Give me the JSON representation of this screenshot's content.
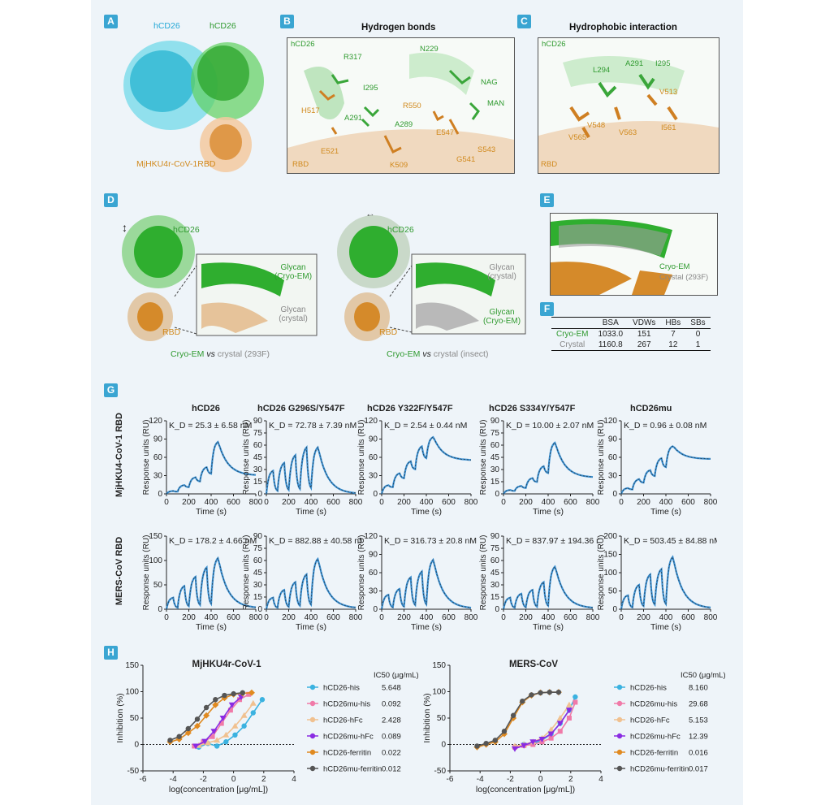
{
  "panels": {
    "A": {
      "tag": "A",
      "label_hcd26_left": "hCD26",
      "label_hcd26_right": "hCD26",
      "label_rbd": "MjHKU4r-CoV-1RBD"
    },
    "B": {
      "tag": "B",
      "title": "Hydrogen bonds",
      "hcd26": "hCD26",
      "rbd": "RBD",
      "residues": [
        "R317",
        "N229",
        "I295",
        "NAG",
        "H517",
        "R550",
        "A291",
        "MAN",
        "A289",
        "E547",
        "S543",
        "E521",
        "K509",
        "G541"
      ]
    },
    "C": {
      "tag": "C",
      "title": "Hydrophobic interaction",
      "hcd26": "hCD26",
      "rbd": "RBD",
      "residues": [
        "L294",
        "A291",
        "I295",
        "V513",
        "V548",
        "V563",
        "I561",
        "V565"
      ]
    },
    "D": {
      "tag": "D",
      "left": {
        "hcd26": "hCD26",
        "rbd": "RBD",
        "glycan_top": "Glycan (Cryo-EM)",
        "glycan_bottom": "Glycan (crystal)",
        "caption_em": "Cryo-EM",
        "caption_vs": "vs",
        "caption_rest": "crystal (293F)"
      },
      "right": {
        "hcd26": "hCD26",
        "rbd": "RBD",
        "glycan_top": "Glycan (crystal)",
        "glycan_bottom": "Glycan (Cryo-EM)",
        "caption_em": "Cryo-EM",
        "caption_vs": "vs",
        "caption_rest": "crystal (insect)"
      }
    },
    "E": {
      "tag": "E",
      "label_em": "Cryo-EM",
      "label_crystal": "Crystal (293F)"
    },
    "F": {
      "tag": "F",
      "headers": [
        "",
        "BSA",
        "VDWs",
        "HBs",
        "SBs"
      ],
      "rows": [
        [
          "Cryo-EM",
          "1033.0",
          "151",
          "7",
          "0"
        ],
        [
          "Crystal",
          "1160.8",
          "267",
          "12",
          "1"
        ]
      ]
    },
    "G": {
      "tag": "G",
      "row_labels": [
        "MjHKU4-CoV-1 RBD",
        "MERS-CoV RBD"
      ],
      "col_titles": [
        "hCD26",
        "hCD26 G296S/Y547F",
        "hCD26 Y322F/Y547F",
        "hCD26 S334Y/Y547F",
        "hCD26mu"
      ],
      "ylabel": "Response units (RU)",
      "xlabel": "Time (s)"
    },
    "H": {
      "tag": "H",
      "ylabel": "Inhibition (%)",
      "xlabel": "log(concentration [μg/mL])"
    }
  },
  "colors": {
    "accent": "#3aa5d2",
    "green": "#2f9a2f",
    "orange": "#d18a1e",
    "trace": "#3a8fd1"
  },
  "chart_data": [
    {
      "type": "line",
      "title": "hCD26",
      "kd": "K_D = 25.3 ± 6.58 nM",
      "ylim": [
        0,
        120
      ],
      "yticks": [
        0,
        30,
        60,
        90,
        120
      ],
      "xlim": [
        0,
        800
      ],
      "xticks": [
        0,
        200,
        400,
        600,
        800
      ],
      "peaks": [
        5,
        15,
        28,
        45,
        88
      ],
      "dissoc_end": 30,
      "xlabel": "Time (s)",
      "ylabel": "Response units (RU)"
    },
    {
      "type": "line",
      "title": "hCD26 G296S/Y547F",
      "kd": "K_D = 72.78 ± 7.39 nM",
      "ylim": [
        0,
        90
      ],
      "yticks": [
        0,
        15,
        30,
        45,
        60,
        75,
        90
      ],
      "xlim": [
        0,
        800
      ],
      "xticks": [
        0,
        200,
        400,
        600,
        800
      ],
      "peaks": [
        30,
        40,
        50,
        60,
        60
      ],
      "dissoc_end": 0,
      "xlabel": "Time (s)",
      "ylabel": "Response units (RU)"
    },
    {
      "type": "line",
      "title": "hCD26 Y322F/Y547F",
      "kd": "K_D = 2.54 ± 0.44 nM",
      "ylim": [
        0,
        120
      ],
      "yticks": [
        0,
        30,
        60,
        90,
        120
      ],
      "xlim": [
        0,
        800
      ],
      "xticks": [
        0,
        200,
        400,
        600,
        800
      ],
      "peaks": [
        15,
        35,
        55,
        80,
        95
      ],
      "dissoc_end": 55,
      "xlabel": "Time (s)",
      "ylabel": "Response units (RU)"
    },
    {
      "type": "line",
      "title": "hCD26 S334Y/Y547F",
      "kd": "K_D = 10.00 ± 2.07 nM",
      "ylim": [
        0,
        90
      ],
      "yticks": [
        0,
        15,
        30,
        45,
        60,
        75,
        90
      ],
      "xlim": [
        0,
        800
      ],
      "xticks": [
        0,
        200,
        400,
        600,
        800
      ],
      "peaks": [
        5,
        10,
        20,
        35,
        65
      ],
      "dissoc_end": 20,
      "xlabel": "Time (s)",
      "ylabel": "Response units (RU)"
    },
    {
      "type": "line",
      "title": "hCD26mu",
      "kd": "K_D = 0.96 ± 0.08 nM",
      "ylim": [
        0,
        120
      ],
      "yticks": [
        0,
        30,
        60,
        90,
        120
      ],
      "xlim": [
        0,
        800
      ],
      "xticks": [
        0,
        200,
        400,
        600,
        800
      ],
      "peaks": [
        10,
        25,
        40,
        60,
        80
      ],
      "dissoc_end": 57,
      "xlabel": "Time (s)",
      "ylabel": "Response units (RU)"
    },
    {
      "type": "line",
      "kd": "K_D = 178.2 ± 4.66 nM",
      "ylim": [
        0,
        150
      ],
      "yticks": [
        0,
        50,
        100,
        150
      ],
      "xlim": [
        0,
        800
      ],
      "xticks": [
        0,
        200,
        400,
        600,
        800
      ],
      "peaks": [
        25,
        50,
        70,
        90,
        110
      ],
      "dissoc_end": 2,
      "xlabel": "Time (s)",
      "ylabel": "Response units (RU)"
    },
    {
      "type": "line",
      "kd": "K_D = 882.88 ± 40.58 nM",
      "ylim": [
        0,
        90
      ],
      "yticks": [
        0,
        15,
        30,
        45,
        60,
        75,
        90
      ],
      "xlim": [
        0,
        800
      ],
      "xticks": [
        0,
        200,
        400,
        600,
        800
      ],
      "peaks": [
        15,
        25,
        35,
        45,
        65
      ],
      "dissoc_end": 1,
      "xlabel": "Time (s)",
      "ylabel": "Response units (RU)"
    },
    {
      "type": "line",
      "kd": "K_D = 316.73 ± 20.8 nM",
      "ylim": [
        0,
        120
      ],
      "yticks": [
        0,
        30,
        60,
        90,
        120
      ],
      "xlim": [
        0,
        800
      ],
      "xticks": [
        0,
        200,
        400,
        600,
        800
      ],
      "peaks": [
        25,
        35,
        55,
        65,
        85
      ],
      "dissoc_end": 1,
      "xlabel": "Time (s)",
      "ylabel": "Response units (RU)"
    },
    {
      "type": "line",
      "kd": "K_D = 837.97 ± 194.36 nM",
      "ylim": [
        0,
        90
      ],
      "yticks": [
        0,
        15,
        30,
        45,
        60,
        75,
        90
      ],
      "xlim": [
        0,
        800
      ],
      "xticks": [
        0,
        200,
        400,
        600,
        800
      ],
      "peaks": [
        15,
        20,
        25,
        35,
        55
      ],
      "dissoc_end": 1,
      "xlabel": "Time (s)",
      "ylabel": "Response units (RU)"
    },
    {
      "type": "line",
      "kd": "K_D = 503.45 ± 84.88 nM",
      "ylim": [
        0,
        200
      ],
      "yticks": [
        0,
        50,
        100,
        150,
        200
      ],
      "xlim": [
        0,
        800
      ],
      "xticks": [
        0,
        200,
        400,
        600,
        800
      ],
      "peaks": [
        40,
        70,
        100,
        115,
        150
      ],
      "dissoc_end": 2,
      "xlabel": "Time (s)",
      "ylabel": "Response units (RU)"
    },
    {
      "type": "scatter",
      "title": "MjHKU4r-CoV-1",
      "xlabel": "log(concentration [μg/mL])",
      "ylabel": "Inhibition (%)",
      "xlim": [
        -6,
        4
      ],
      "xticks": [
        -6,
        -4,
        -2,
        0,
        2,
        4
      ],
      "ylim": [
        -50,
        150
      ],
      "yticks": [
        -50,
        0,
        50,
        100,
        150
      ],
      "ic50_header": "IC50 (μg/mL)",
      "series": [
        {
          "name": "hCD26-his",
          "ic50": "5.648",
          "color": "#3bb2e0",
          "marker": "circle",
          "x": [
            -2.3,
            -1.7,
            -1.1,
            -0.5,
            0.1,
            0.7,
            1.3,
            1.9
          ],
          "y": [
            -5,
            2,
            -3,
            5,
            18,
            35,
            60,
            85
          ]
        },
        {
          "name": "hCD26mu-his",
          "ic50": "0.092",
          "color": "#f07aa8",
          "marker": "square",
          "x": [
            -2.6,
            -2,
            -1.4,
            -0.8,
            -0.2,
            0.4,
            1
          ],
          "y": [
            -3,
            5,
            15,
            40,
            65,
            85,
            95
          ]
        },
        {
          "name": "hCD26-hFc",
          "ic50": "2.428",
          "color": "#f0c190",
          "marker": "triangle",
          "x": [
            -2.3,
            -1.7,
            -1.1,
            -0.5,
            0.1,
            0.7,
            1.3
          ],
          "y": [
            -2,
            3,
            8,
            18,
            35,
            55,
            78
          ]
        },
        {
          "name": "hCD26mu-hFc",
          "ic50": "0.089",
          "color": "#8a2be2",
          "marker": "triangle-down",
          "x": [
            -2.5,
            -1.9,
            -1.3,
            -0.7,
            -0.1,
            0.5
          ],
          "y": [
            -3,
            6,
            25,
            50,
            75,
            90
          ]
        },
        {
          "name": "hCD26-ferritin",
          "ic50": "0.022",
          "color": "#e08a20",
          "marker": "diamond",
          "x": [
            -4.2,
            -3.6,
            -3,
            -2.4,
            -1.8,
            -1.2,
            -0.6,
            0,
            0.6,
            1.2
          ],
          "y": [
            5,
            10,
            22,
            35,
            55,
            75,
            88,
            95,
            97,
            98
          ]
        },
        {
          "name": "hCD26mu-ferritin",
          "ic50": "0.012",
          "color": "#555555",
          "marker": "circle",
          "x": [
            -4.2,
            -3.6,
            -3,
            -2.4,
            -1.8,
            -1.2,
            -0.6,
            0,
            0.6
          ],
          "y": [
            8,
            15,
            30,
            48,
            70,
            85,
            93,
            96,
            98
          ]
        }
      ]
    },
    {
      "type": "scatter",
      "title": "MERS-CoV",
      "xlabel": "log(concentration [μg/mL])",
      "ylabel": "Inhibition (%)",
      "xlim": [
        -6,
        4
      ],
      "xticks": [
        -6,
        -4,
        -2,
        0,
        2,
        4
      ],
      "ylim": [
        -50,
        150
      ],
      "yticks": [
        -50,
        0,
        50,
        100,
        150
      ],
      "ic50_header": "IC50 (μg/mL)",
      "series": [
        {
          "name": "hCD26-his",
          "ic50": "8.160",
          "color": "#3bb2e0",
          "marker": "circle",
          "x": [
            -1.7,
            -1.1,
            -0.5,
            0.1,
            0.7,
            1.3,
            1.9,
            2.3
          ],
          "y": [
            -5,
            0,
            2,
            8,
            20,
            40,
            65,
            90
          ]
        },
        {
          "name": "hCD26mu-his",
          "ic50": "29.68",
          "color": "#f07aa8",
          "marker": "square",
          "x": [
            -1.7,
            -1.1,
            -0.5,
            0.1,
            0.7,
            1.3,
            1.9,
            2.3
          ],
          "y": [
            -5,
            -2,
            0,
            5,
            12,
            25,
            50,
            80
          ]
        },
        {
          "name": "hCD26-hFc",
          "ic50": "5.153",
          "color": "#f0c190",
          "marker": "triangle",
          "x": [
            -1.7,
            -1.1,
            -0.5,
            0.1,
            0.7,
            1.3,
            1.9
          ],
          "y": [
            -3,
            0,
            5,
            12,
            28,
            50,
            75
          ]
        },
        {
          "name": "hCD26mu-hFc",
          "ic50": "12.39",
          "color": "#8a2be2",
          "marker": "triangle-down",
          "x": [
            -1.7,
            -1.1,
            -0.5,
            0.1,
            0.7,
            1.3,
            1.9
          ],
          "y": [
            -8,
            -2,
            5,
            10,
            20,
            40,
            65
          ]
        },
        {
          "name": "hCD26-ferritin",
          "ic50": "0.016",
          "color": "#e08a20",
          "marker": "diamond",
          "x": [
            -4.2,
            -3.6,
            -3,
            -2.4,
            -1.8,
            -1.2,
            -0.6,
            0,
            0.6,
            1.2
          ],
          "y": [
            -5,
            0,
            5,
            20,
            50,
            80,
            93,
            98,
            99,
            99
          ]
        },
        {
          "name": "hCD26mu-ferritin",
          "ic50": "0.017",
          "color": "#555555",
          "marker": "circle",
          "x": [
            -4.2,
            -3.6,
            -3,
            -2.4,
            -1.8,
            -1.2,
            -0.6,
            0,
            0.6,
            1.2
          ],
          "y": [
            -3,
            2,
            8,
            25,
            55,
            82,
            94,
            98,
            99,
            99
          ]
        }
      ]
    }
  ]
}
